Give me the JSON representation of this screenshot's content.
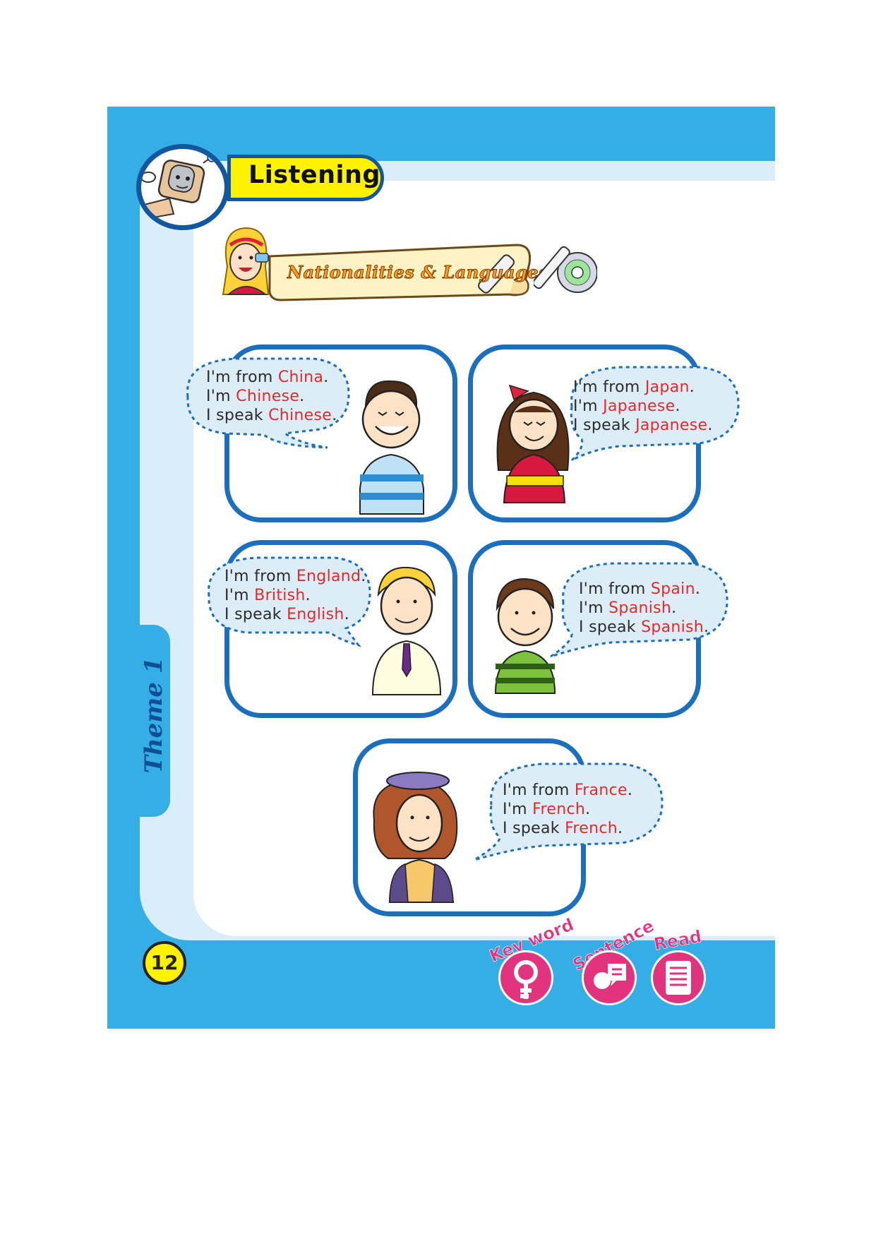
{
  "header": {
    "section_title": "Listening"
  },
  "banner": {
    "title": "Nationalities & Languages"
  },
  "side_tab": {
    "label": "Theme 1"
  },
  "cards": [
    {
      "from": "China",
      "nationality": "Chinese",
      "language": "Chinese"
    },
    {
      "from": "Japan",
      "nationality": "Japanese",
      "language": "Japanese"
    },
    {
      "from": "England",
      "nationality": "British",
      "language": "English"
    },
    {
      "from": "Spain",
      "nationality": "Spanish",
      "language": "Spanish"
    },
    {
      "from": "France",
      "nationality": "French",
      "language": "French"
    }
  ],
  "phrases": {
    "from": "I'm from ",
    "im": "I'm ",
    "speak": "I speak ",
    "period": "."
  },
  "footer": {
    "page_number": "12",
    "icons": [
      {
        "label": "Key word",
        "icon": "key-word-icon"
      },
      {
        "label": "Sentence",
        "icon": "sentence-icon"
      },
      {
        "label": "Read",
        "icon": "read-icon"
      }
    ]
  },
  "colors": {
    "frame": "#35aee6",
    "border": "#1b6fbd",
    "highlight": "#e02a2a",
    "accent": "#fff200",
    "footer_icon": "#e2337f"
  }
}
